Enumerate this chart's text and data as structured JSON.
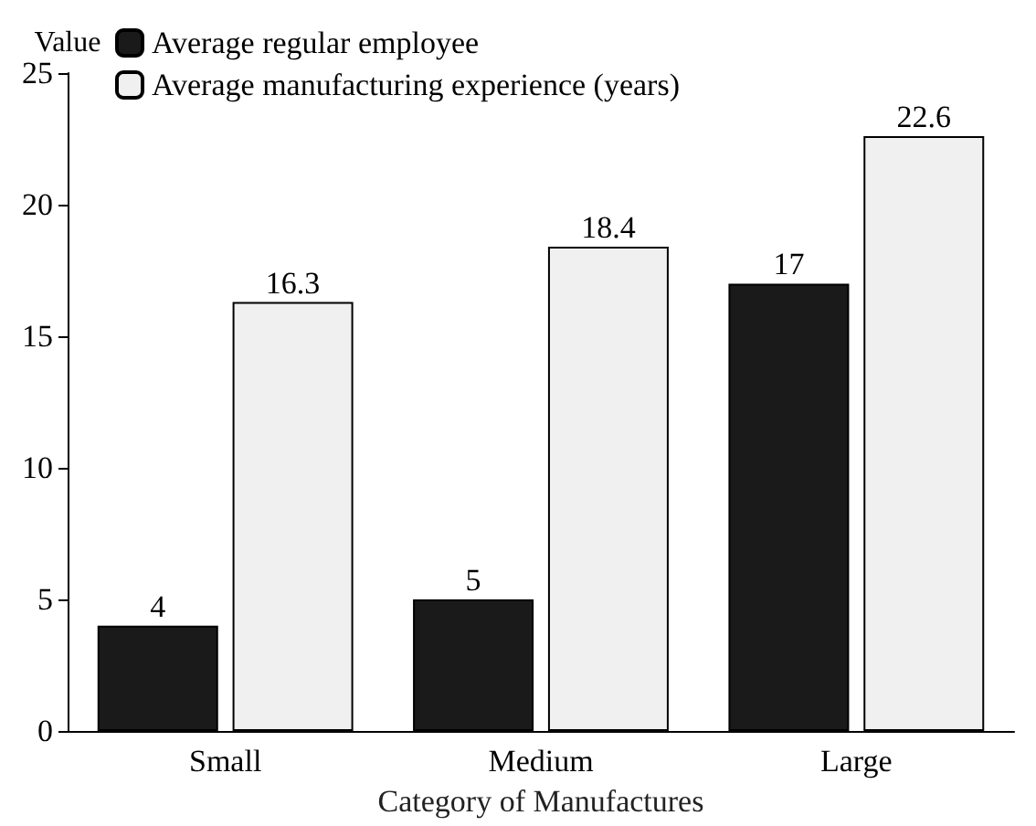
{
  "chart_data": {
    "type": "bar",
    "xlabel": "Category of Manufactures",
    "ylabel": "Value",
    "categories": [
      "Small",
      "Medium",
      "Large"
    ],
    "series": [
      {
        "name": "Average regular employee",
        "color": "#1a1a1a",
        "values": [
          4,
          5,
          17
        ]
      },
      {
        "name": "Average manufacturing experience (years)",
        "color": "#f0f0f0",
        "values": [
          16.3,
          18.4,
          22.6
        ]
      }
    ],
    "ylim": [
      0,
      25
    ],
    "yticks": [
      0,
      5,
      10,
      15,
      20,
      25
    ],
    "grid": false,
    "legend": "top left",
    "data_labels": true
  }
}
